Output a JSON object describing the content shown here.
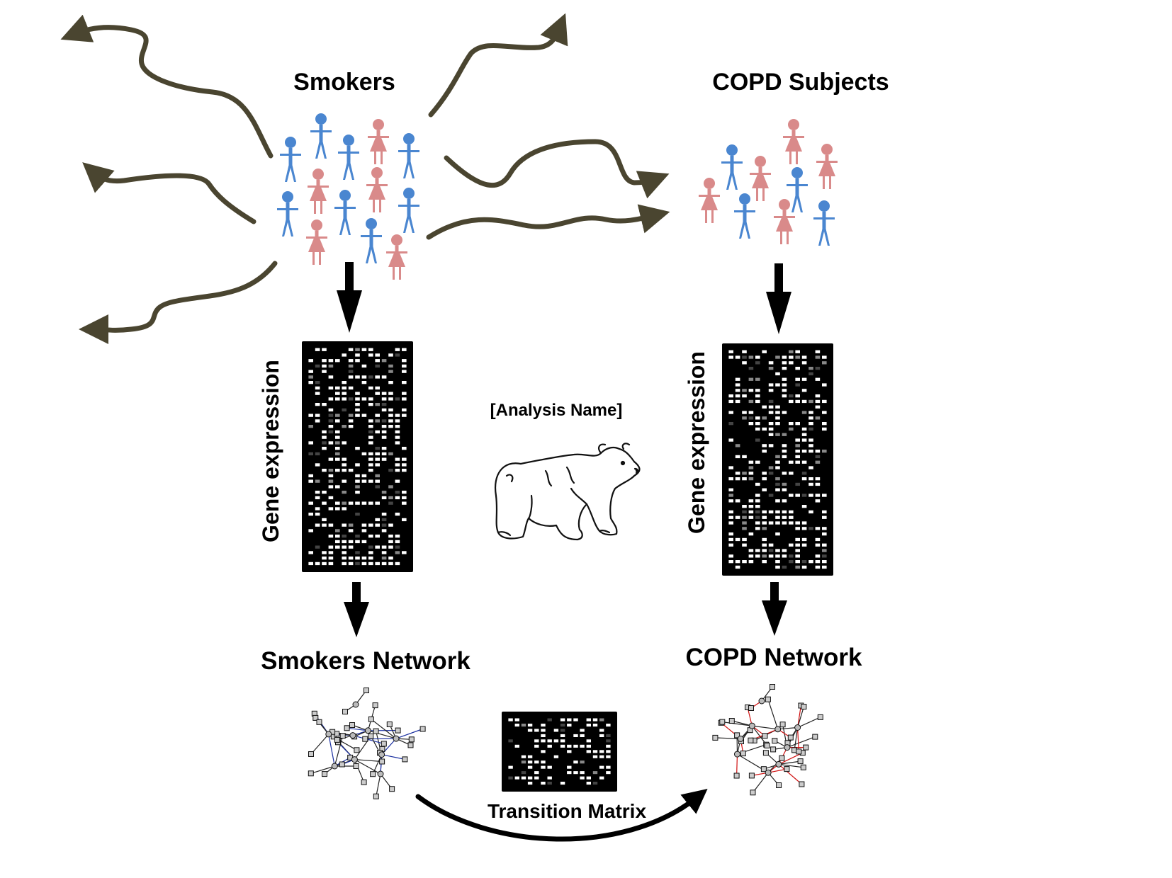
{
  "labels": {
    "smokers": "Smokers",
    "copd_subjects": "COPD Subjects",
    "gene_expression_left": "Gene expression",
    "gene_expression_right": "Gene expression",
    "analysis_name": "[Analysis Name]",
    "smokers_network": "Smokers Network",
    "copd_network": "COPD Network",
    "transition_matrix": "Transition Matrix"
  },
  "colors": {
    "male_figure": "#4a86d0",
    "female_figure": "#d98a8a",
    "wavy_arrow": "#4a4530",
    "arrow": "#000000",
    "smokers_network_edges": "#1a2fa0",
    "copd_network_edges": "#d01010",
    "matrix_background": "#000000",
    "matrix_cell": "#ffffff"
  },
  "icons": {
    "male": "person-male-icon",
    "female": "person-female-icon",
    "bear": "polar-bear-icon"
  }
}
